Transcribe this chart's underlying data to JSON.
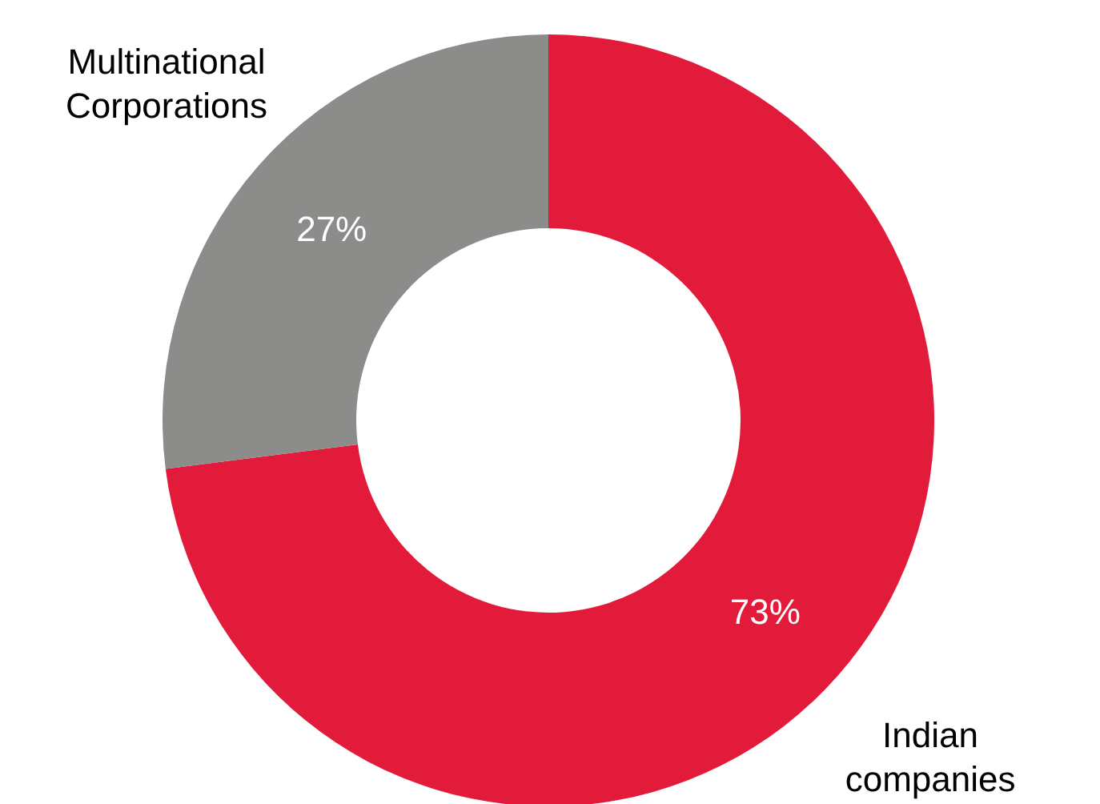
{
  "chart_data": {
    "type": "donut",
    "categories": [
      "Indian companies",
      "Multinational Corporations"
    ],
    "values": [
      73,
      27
    ],
    "colors": [
      "#e31b3b",
      "#8c8c8a"
    ],
    "value_labels": [
      "73%",
      "27%"
    ],
    "legend": false
  }
}
